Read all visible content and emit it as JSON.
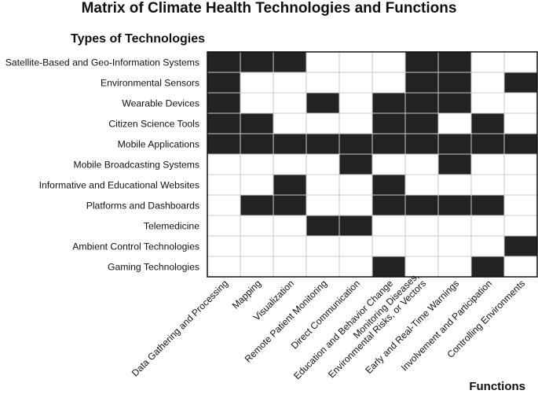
{
  "chart_data": {
    "type": "heatmap",
    "title": "Matrix of Climate Health Technologies and Functions",
    "row_heading": "Types of Technologies",
    "col_heading": "Functions",
    "rows": [
      "Satellite-Based and Geo-Information Systems",
      "Environmental Sensors",
      "Wearable Devices",
      "Citizen Science Tools",
      "Mobile Applications",
      "Mobile Broadcasting Systems",
      "Informative and Educational Websites",
      "Platforms and Dashboards",
      "Telemedicine",
      "Ambient Control Technologies",
      "Gaming Technologies"
    ],
    "columns": [
      [
        "Data Gathering and Processing"
      ],
      [
        "Mapping"
      ],
      [
        "Visualization"
      ],
      [
        "Remote Patient Monitoring"
      ],
      [
        "Direct Communication"
      ],
      [
        "Education and Behavior Change"
      ],
      [
        "Monitoring Diseases,",
        "Environmental Risks, or Vectors"
      ],
      [
        "Early and Real-Time Warnings"
      ],
      [
        "Involvement and Participation"
      ],
      [
        "Controlling Environments"
      ]
    ],
    "matrix": [
      [
        1,
        1,
        1,
        0,
        0,
        0,
        1,
        1,
        0,
        0
      ],
      [
        1,
        0,
        0,
        0,
        0,
        0,
        1,
        1,
        0,
        1
      ],
      [
        1,
        0,
        0,
        1,
        0,
        1,
        1,
        1,
        0,
        0
      ],
      [
        1,
        1,
        0,
        0,
        0,
        1,
        1,
        0,
        1,
        0
      ],
      [
        1,
        1,
        1,
        1,
        1,
        1,
        1,
        1,
        1,
        1
      ],
      [
        0,
        0,
        0,
        0,
        1,
        0,
        0,
        1,
        0,
        0
      ],
      [
        0,
        0,
        1,
        0,
        0,
        1,
        0,
        0,
        0,
        0
      ],
      [
        0,
        1,
        1,
        0,
        0,
        1,
        1,
        1,
        1,
        0
      ],
      [
        0,
        0,
        0,
        1,
        1,
        0,
        0,
        0,
        0,
        0
      ],
      [
        0,
        0,
        0,
        0,
        0,
        0,
        0,
        0,
        0,
        1
      ],
      [
        0,
        0,
        0,
        0,
        0,
        1,
        0,
        0,
        1,
        0
      ]
    ],
    "colors": {
      "filled": "#232323",
      "empty": "#ffffff",
      "grid": "#c8c8c8",
      "border": "#111111"
    }
  }
}
